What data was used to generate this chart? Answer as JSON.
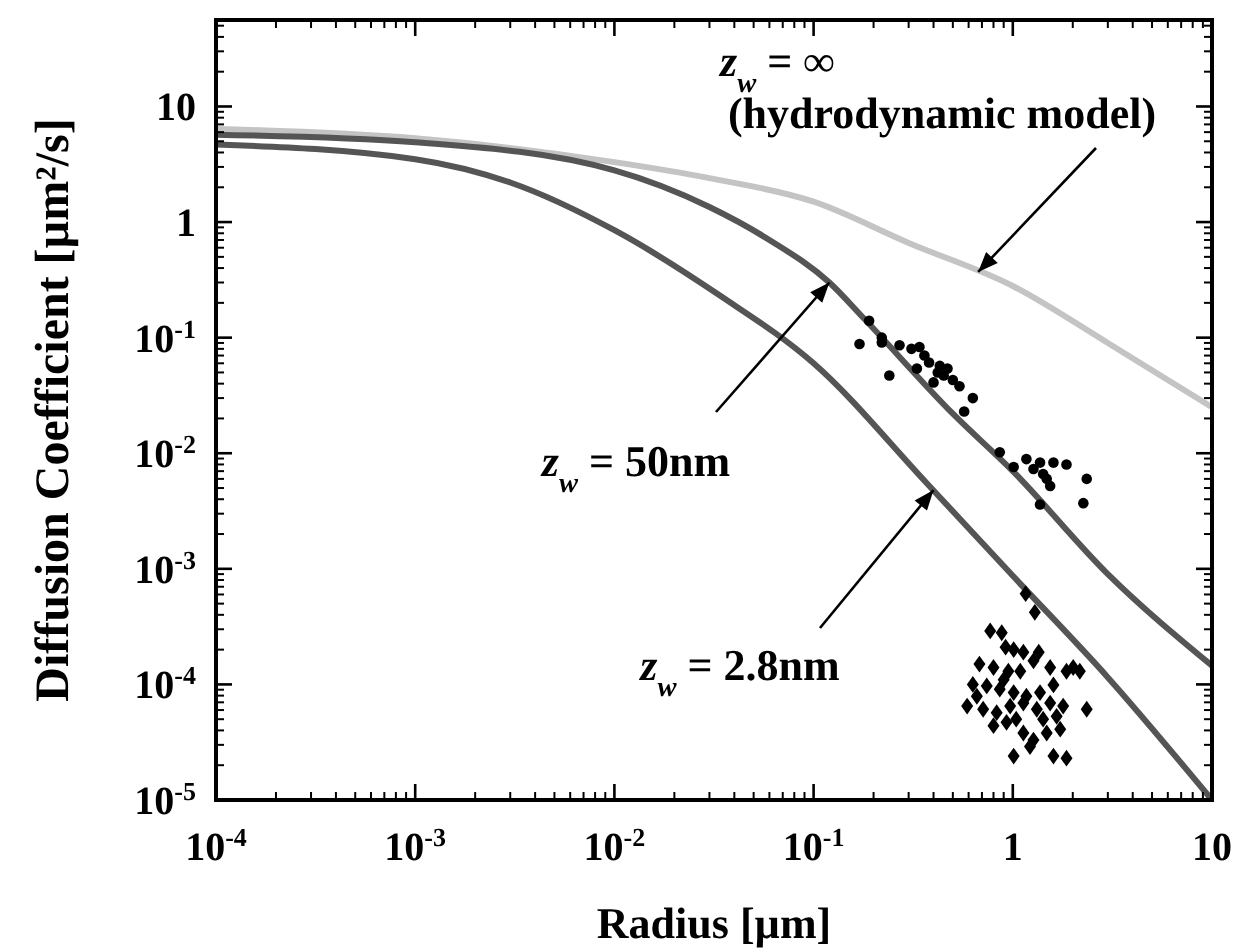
{
  "chart_data": {
    "type": "line",
    "xlabel": "Radius [µm]",
    "ylabel": "Diffusion Coefficient [µm²/s]",
    "log": "xy",
    "grid": false,
    "xlim": [
      0.0001,
      10
    ],
    "ylim": [
      1e-05,
      56
    ],
    "xticks": [
      {
        "value": 0.0001,
        "label": "10$^{-4}$"
      },
      {
        "value": 0.001,
        "label": "10$^{-3}$"
      },
      {
        "value": 0.01,
        "label": "10$^{-2}$"
      },
      {
        "value": 0.1,
        "label": "10$^{-1}$"
      },
      1,
      10
    ],
    "yticks": [
      {
        "value": 1e-05,
        "label": "10$^{-5}$"
      },
      {
        "value": 0.0001,
        "label": "10$^{-4}$"
      },
      {
        "value": 0.001,
        "label": "10$^{-3}$"
      },
      {
        "value": 0.01,
        "label": "10$^{-2}$"
      },
      {
        "value": 0.1,
        "label": "10$^{-1}$"
      },
      1,
      10
    ],
    "series": [
      {
        "color": "#c4c4c4",
        "x": [
          0.0001,
          0.001,
          0.01,
          0.03,
          0.1,
          0.3,
          1,
          3,
          10
        ],
        "values": [
          6.4,
          5.3,
          3.3,
          2.4,
          1.5,
          0.66,
          0.28,
          0.09,
          0.025
        ]
      },
      {
        "color": "#555555",
        "x": [
          0.0001,
          0.001,
          0.01,
          0.03,
          0.06,
          0.12,
          0.18,
          0.5,
          1,
          3,
          10
        ],
        "values": [
          5.7,
          4.9,
          2.8,
          1.35,
          0.7,
          0.3,
          0.145,
          0.022,
          0.007,
          0.0009,
          0.000145
        ]
      },
      {
        "color": "#555555",
        "x": [
          0.0001,
          0.001,
          0.003,
          0.01,
          0.034,
          0.1,
          0.37,
          1,
          3,
          10
        ],
        "values": [
          4.7,
          3.5,
          2.2,
          0.85,
          0.23,
          0.06,
          0.0055,
          0.00087,
          0.000115,
          1e-05
        ]
      },
      {
        "type": "scatter",
        "color": "#000000",
        "marker": "circle",
        "x": [
          0.17,
          0.19,
          0.22,
          0.22,
          0.24,
          0.27,
          0.31,
          0.33,
          0.34,
          0.36,
          0.38,
          0.4,
          0.42,
          0.43,
          0.45,
          0.47,
          0.5,
          0.54,
          0.57,
          0.63,
          0.86,
          1.01,
          1.17,
          1.27,
          1.37,
          1.42,
          1.48,
          1.54,
          1.6,
          1.86,
          1.37,
          2.26,
          2.35
        ],
        "values": [
          0.088,
          0.14,
          0.091,
          0.1,
          0.047,
          0.086,
          0.08,
          0.054,
          0.083,
          0.07,
          0.061,
          0.041,
          0.05,
          0.057,
          0.047,
          0.054,
          0.043,
          0.038,
          0.023,
          0.03,
          0.0102,
          0.0076,
          0.0089,
          0.0073,
          0.0083,
          0.0066,
          0.006,
          0.0052,
          0.0083,
          0.008,
          0.0036,
          0.0037,
          0.006
        ]
      },
      {
        "type": "scatter",
        "color": "#000000",
        "marker": "diamond",
        "x": [
          1.16,
          1.29,
          0.77,
          0.88,
          0.92,
          1.01,
          1.13,
          1.27,
          0.68,
          0.8,
          0.95,
          1.09,
          1.35,
          1.54,
          0.63,
          0.74,
          0.86,
          1.01,
          1.17,
          1.37,
          1.6,
          1.86,
          2.01,
          2.17,
          0.59,
          0.71,
          0.83,
          0.97,
          1.13,
          1.32,
          1.54,
          1.79,
          2.35,
          0.8,
          0.93,
          1.13,
          1.27,
          1.48,
          1.73,
          1.01,
          1.6,
          1.86,
          1.22,
          0.66,
          0.9,
          1.42,
          1.66,
          1.04
        ],
        "values": [
          0.00061,
          0.00042,
          0.00029,
          0.00028,
          0.00021,
          0.0002,
          0.00019,
          0.00016,
          0.00015,
          0.00014,
          0.00013,
          0.00013,
          0.00019,
          0.00014,
          0.0001,
          9.7e-05,
          9.1e-05,
          8.5e-05,
          7.9e-05,
          8.5e-05,
          9.9e-05,
          0.00013,
          0.00014,
          0.00013,
          6.5e-05,
          6.1e-05,
          5.7e-05,
          6.5e-05,
          6.9e-05,
          6.1e-05,
          6.9e-05,
          6.5e-05,
          6.1e-05,
          4.4e-05,
          4.7e-05,
          3.8e-05,
          3.3e-05,
          3.8e-05,
          4.1e-05,
          2.4e-05,
          2.4e-05,
          2.3e-05,
          2.9e-05,
          7.9e-05,
          0.00011,
          5e-05,
          5.3e-05,
          5e-05
        ]
      }
    ],
    "annotations": [
      "z$_{w}$ = ∞",
      {
        "text": "(hydrodynamic model)",
        "x": 0.67,
        "y": 0.37
      },
      {
        "text": "z$_{w}$ = 50nm",
        "x": 0.12,
        "y": 0.3
      },
      {
        "text": "z$_{w}$ = 2.8nm",
        "x": 0.4,
        "y": 0.0048
      }
    ]
  }
}
